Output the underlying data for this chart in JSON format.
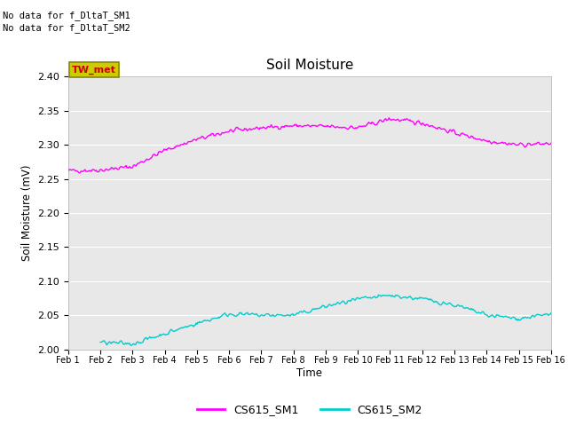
{
  "title": "Soil Moisture",
  "ylabel": "Soil Moisture (mV)",
  "xlabel": "Time",
  "ylim": [
    2.0,
    2.4
  ],
  "yticks": [
    2.0,
    2.05,
    2.1,
    2.15,
    2.2,
    2.25,
    2.3,
    2.35,
    2.4
  ],
  "x_labels": [
    "Feb 1",
    "Feb 2",
    "Feb 3",
    "Feb 4",
    "Feb 5",
    "Feb 6",
    "Feb 7",
    "Feb 8",
    "Feb 9",
    "Feb 10",
    "Feb 11",
    "Feb 12",
    "Feb 13",
    "Feb 14",
    "Feb 15",
    "Feb 16"
  ],
  "no_data_text": [
    "No data for f_DltaT_SM1",
    "No data for f_DltaT_SM2"
  ],
  "tw_met_label": "TW_met",
  "tw_met_color": "#cc0000",
  "tw_met_bg": "#cccc00",
  "tw_met_edge": "#888800",
  "color_sm1": "#ff00ff",
  "color_sm2": "#00cccc",
  "legend_sm1": "CS615_SM1",
  "legend_sm2": "CS615_SM2",
  "background_color": "#e8e8e8",
  "grid_color": "#ffffff",
  "fig_bg": "#ffffff"
}
